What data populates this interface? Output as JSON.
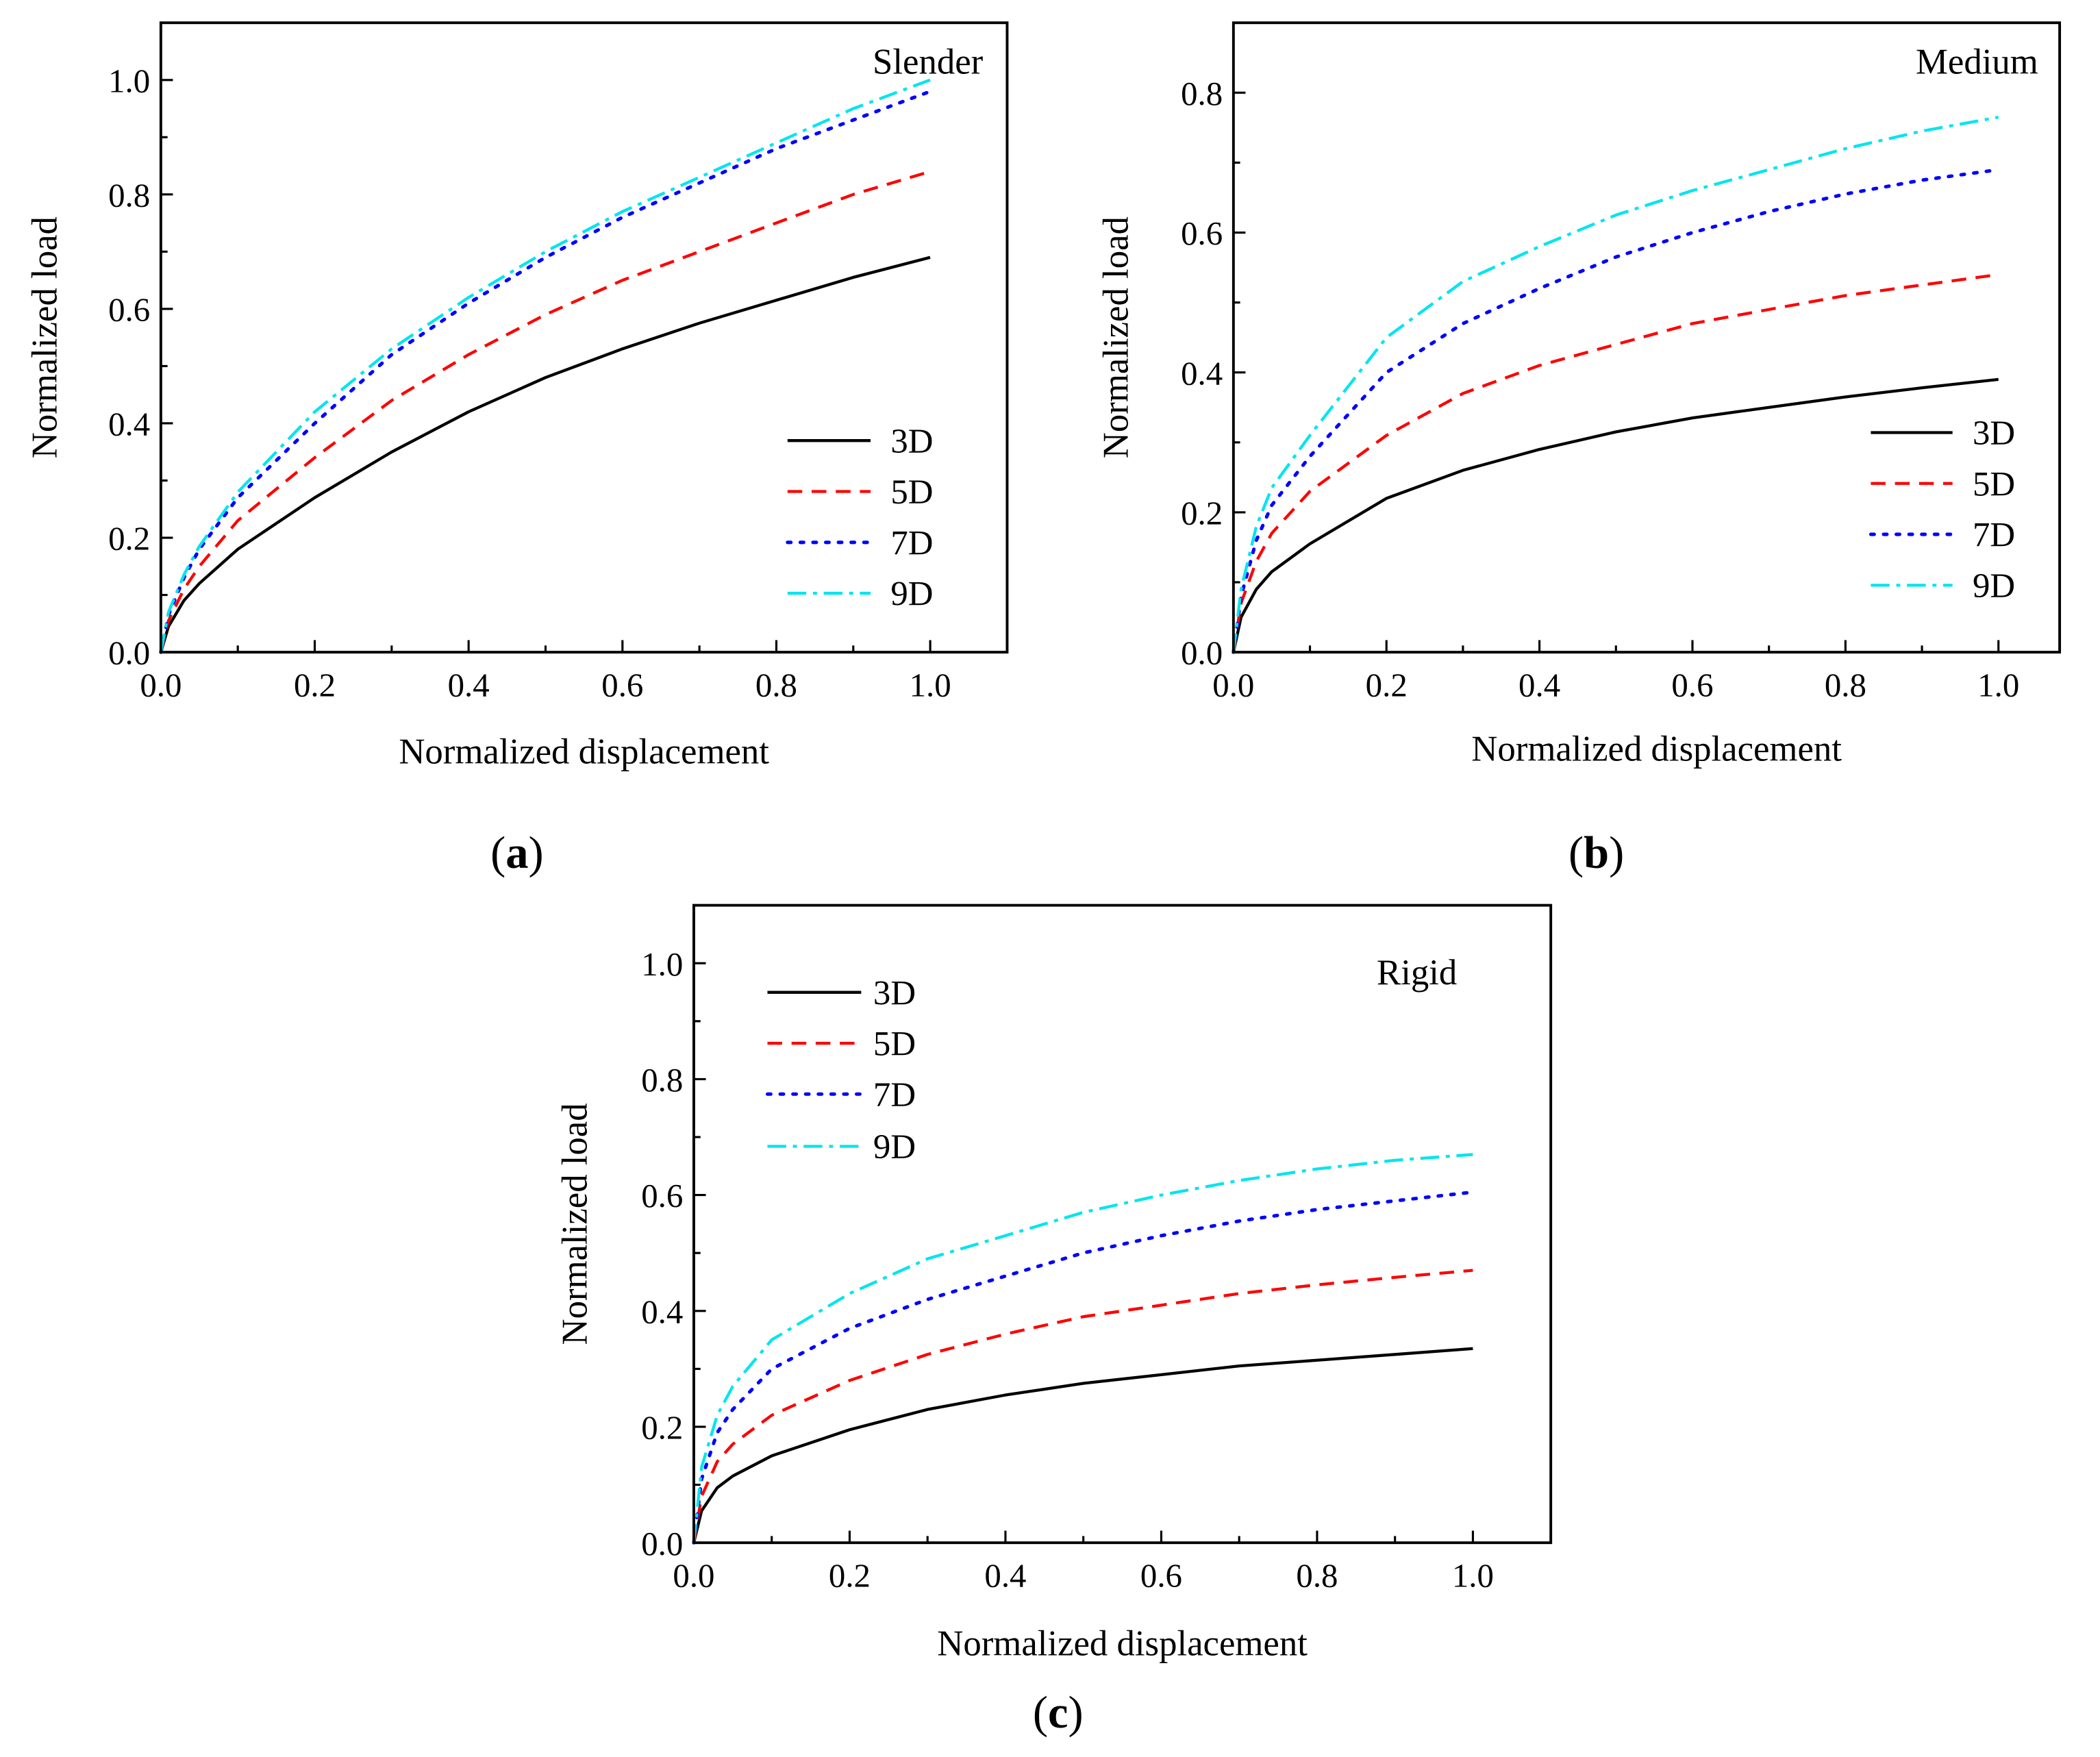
{
  "colors": {
    "3D": "#000000",
    "5D": "#ff0000",
    "7D": "#0000ff",
    "9D": "#00e5ee"
  },
  "chart_data": [
    {
      "type": "line",
      "panel_label": "a",
      "annotation": "Slender",
      "xlabel": "Normalized displacement",
      "ylabel": "Normalized load",
      "xlim": [
        0,
        1.1
      ],
      "ylim": [
        0,
        1.1
      ],
      "xticks": [
        "0.0",
        "0.2",
        "0.4",
        "0.6",
        "0.8",
        "1.0"
      ],
      "yticks": [
        "0.0",
        "0.2",
        "0.4",
        "0.6",
        "0.8",
        "1.0"
      ],
      "legend_position": "bottom-right",
      "x": [
        0,
        0.01,
        0.03,
        0.05,
        0.1,
        0.2,
        0.3,
        0.4,
        0.5,
        0.6,
        0.7,
        0.8,
        0.9,
        1.0
      ],
      "series": [
        {
          "name": "3D",
          "style": "solid",
          "values": [
            0,
            0.045,
            0.09,
            0.12,
            0.18,
            0.27,
            0.35,
            0.42,
            0.48,
            0.53,
            0.575,
            0.615,
            0.655,
            0.69
          ]
        },
        {
          "name": "5D",
          "style": "dashed",
          "values": [
            0,
            0.055,
            0.11,
            0.15,
            0.23,
            0.34,
            0.44,
            0.52,
            0.59,
            0.65,
            0.7,
            0.75,
            0.8,
            0.84
          ]
        },
        {
          "name": "7D",
          "style": "dotted",
          "values": [
            0,
            0.065,
            0.13,
            0.18,
            0.27,
            0.4,
            0.52,
            0.61,
            0.69,
            0.76,
            0.82,
            0.88,
            0.93,
            0.98
          ]
        },
        {
          "name": "9D",
          "style": "dashdot",
          "values": [
            0,
            0.07,
            0.135,
            0.185,
            0.28,
            0.42,
            0.53,
            0.62,
            0.7,
            0.77,
            0.83,
            0.89,
            0.95,
            1.0
          ]
        }
      ]
    },
    {
      "type": "line",
      "panel_label": "b",
      "annotation": "Medium",
      "xlabel": "Normalized displacement",
      "ylabel": "Normalized load",
      "xlim": [
        0,
        1.08
      ],
      "ylim": [
        0,
        0.9
      ],
      "xticks": [
        "0.0",
        "0.2",
        "0.4",
        "0.6",
        "0.8",
        "1.0"
      ],
      "yticks": [
        "0.0",
        "0.2",
        "0.4",
        "0.6",
        "0.8"
      ],
      "legend_position": "bottom-right",
      "x": [
        0,
        0.01,
        0.03,
        0.05,
        0.1,
        0.2,
        0.3,
        0.4,
        0.5,
        0.6,
        0.7,
        0.8,
        0.9,
        1.0
      ],
      "series": [
        {
          "name": "3D",
          "style": "solid",
          "values": [
            0,
            0.05,
            0.09,
            0.115,
            0.155,
            0.22,
            0.26,
            0.29,
            0.315,
            0.335,
            0.35,
            0.365,
            0.378,
            0.39
          ]
        },
        {
          "name": "5D",
          "style": "dashed",
          "values": [
            0,
            0.07,
            0.13,
            0.17,
            0.23,
            0.31,
            0.37,
            0.41,
            0.44,
            0.47,
            0.49,
            0.51,
            0.525,
            0.54
          ]
        },
        {
          "name": "7D",
          "style": "dotted",
          "values": [
            0,
            0.08,
            0.16,
            0.21,
            0.28,
            0.4,
            0.47,
            0.52,
            0.565,
            0.6,
            0.63,
            0.655,
            0.675,
            0.69
          ]
        },
        {
          "name": "9D",
          "style": "dashdot",
          "values": [
            0,
            0.09,
            0.18,
            0.235,
            0.31,
            0.45,
            0.53,
            0.58,
            0.625,
            0.66,
            0.69,
            0.72,
            0.745,
            0.765
          ]
        }
      ]
    },
    {
      "type": "line",
      "panel_label": "c",
      "annotation": "Rigid",
      "xlabel": "Normalized displacement",
      "ylabel": "Normalized load",
      "xlim": [
        0,
        1.1
      ],
      "ylim": [
        0,
        1.1
      ],
      "xticks": [
        "0.0",
        "0.2",
        "0.4",
        "0.6",
        "0.8",
        "1.0"
      ],
      "yticks": [
        "0.0",
        "0.2",
        "0.4",
        "0.6",
        "0.8",
        "1.0"
      ],
      "legend_position": "top-left",
      "x": [
        0,
        0.01,
        0.03,
        0.05,
        0.1,
        0.2,
        0.3,
        0.4,
        0.5,
        0.6,
        0.7,
        0.8,
        0.9,
        1.0
      ],
      "series": [
        {
          "name": "3D",
          "style": "solid",
          "values": [
            0,
            0.055,
            0.095,
            0.115,
            0.15,
            0.195,
            0.23,
            0.255,
            0.275,
            0.29,
            0.305,
            0.315,
            0.325,
            0.335
          ]
        },
        {
          "name": "5D",
          "style": "dashed",
          "values": [
            0,
            0.08,
            0.14,
            0.17,
            0.22,
            0.28,
            0.325,
            0.36,
            0.39,
            0.41,
            0.43,
            0.445,
            0.458,
            0.47
          ]
        },
        {
          "name": "7D",
          "style": "dotted",
          "values": [
            0,
            0.11,
            0.19,
            0.23,
            0.3,
            0.37,
            0.42,
            0.46,
            0.5,
            0.53,
            0.555,
            0.575,
            0.59,
            0.605
          ]
        },
        {
          "name": "9D",
          "style": "dashdot",
          "values": [
            0,
            0.13,
            0.22,
            0.27,
            0.35,
            0.43,
            0.49,
            0.53,
            0.57,
            0.6,
            0.625,
            0.645,
            0.66,
            0.67
          ]
        }
      ]
    }
  ]
}
